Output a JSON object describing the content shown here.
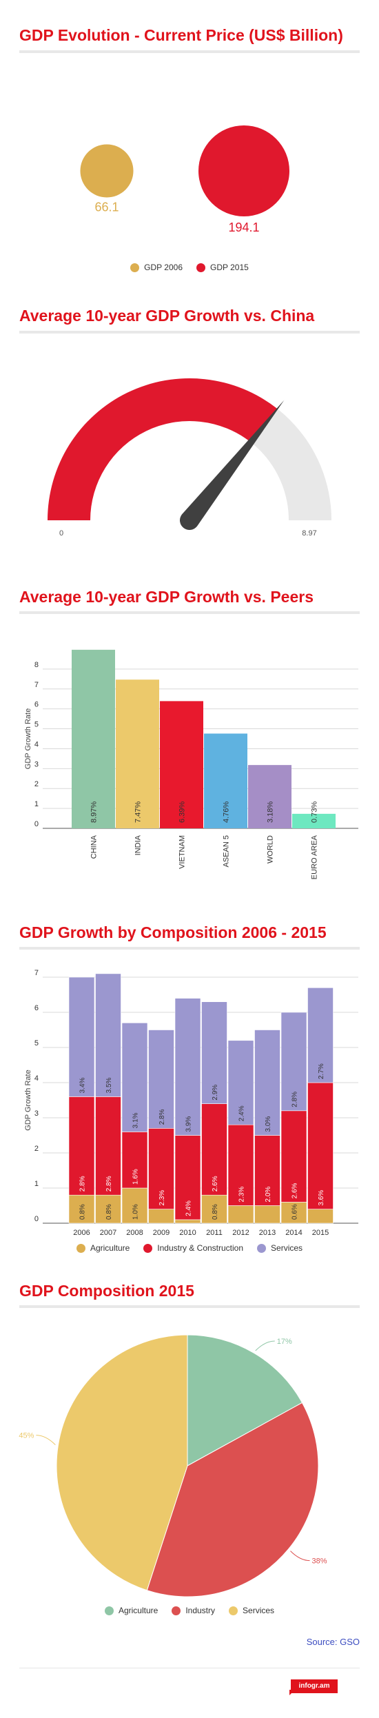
{
  "sections": {
    "gdp_evolution": "GDP Evolution - Current Price  (US$ Billion)",
    "vs_china": "Average 10-year GDP Growth vs. China",
    "vs_peers": "Average 10-year GDP Growth vs. Peers",
    "composition": "GDP Growth by Composition 2006 - 2015",
    "composition_2015": "GDP Composition 2015"
  },
  "source": "Source: GSO",
  "brand": "infogr.am",
  "colors": {
    "accent": "#e0131c",
    "grid": "#d9d9d9"
  },
  "chart_data": [
    {
      "type": "bubble",
      "series": [
        {
          "name": "GDP 2006",
          "value": 66.1,
          "color": "#dcae4f"
        },
        {
          "name": "GDP 2015",
          "value": 194.1,
          "color": "#e0182d"
        }
      ]
    },
    {
      "type": "gauge",
      "min": "0",
      "max": "8.97",
      "min_value": 0,
      "max_value": 8.97,
      "value": 6.39,
      "fill_color": "#e0182d",
      "track_color": "#e8e8e8",
      "needle_color": "#404040"
    },
    {
      "type": "bar",
      "ylabel": "GDP Growth Rate",
      "ylim": [
        0,
        9
      ],
      "yticks": [
        "0",
        "1",
        "2",
        "3",
        "4",
        "5",
        "6",
        "7",
        "8"
      ],
      "categories": [
        "CHINA",
        "INDIA",
        "VIETNAM",
        "ASEAN 5",
        "WORLD",
        "EURO AREA"
      ],
      "values": [
        8.97,
        7.47,
        6.39,
        4.76,
        3.18,
        0.73
      ],
      "labels": [
        "8.97%",
        "7.47%",
        "6.39%",
        "4.76%",
        "3.18%",
        "0.73%"
      ],
      "colors": [
        "#8fc6a6",
        "#ecc96b",
        "#e8192d",
        "#5fb2e0",
        "#a58ec6",
        "#6ee8c0"
      ]
    },
    {
      "type": "bar",
      "stacked": true,
      "ylabel": "GDP Growth Rate",
      "ylim": [
        0,
        7
      ],
      "yticks": [
        "0",
        "1",
        "2",
        "3",
        "4",
        "5",
        "6",
        "7"
      ],
      "categories": [
        "2006",
        "2007",
        "2008",
        "2009",
        "2010",
        "2011",
        "2012",
        "2013",
        "2014",
        "2015"
      ],
      "series": [
        {
          "name": "Agriculture",
          "color": "#dcae4f",
          "values": [
            0.8,
            0.8,
            1.0,
            0.4,
            0.1,
            0.8,
            0.5,
            0.5,
            0.6,
            0.4
          ],
          "labels": [
            "0.8%",
            "0.8%",
            "1.0%",
            "",
            "",
            "0.8%",
            "",
            "",
            "0.6%",
            ""
          ]
        },
        {
          "name": "Industry & Construction",
          "color": "#e0182d",
          "values": [
            2.8,
            2.8,
            1.6,
            2.3,
            2.4,
            2.6,
            2.3,
            2.0,
            2.6,
            3.6
          ],
          "labels": [
            "2.8%",
            "2.8%",
            "1.6%",
            "2.3%",
            "2.4%",
            "2.6%",
            "2.3%",
            "2.0%",
            "2.6%",
            "3.6%"
          ]
        },
        {
          "name": "Services",
          "color": "#9b97cf",
          "values": [
            3.4,
            3.5,
            3.1,
            2.8,
            3.9,
            2.9,
            2.4,
            3.0,
            2.8,
            2.7
          ],
          "labels": [
            "3.4%",
            "3.5%",
            "3.1%",
            "2.8%",
            "3.9%",
            "2.9%",
            "2.4%",
            "3.0%",
            "2.8%",
            "2.7%"
          ]
        }
      ]
    },
    {
      "type": "pie",
      "slices": [
        {
          "name": "Agriculture",
          "value": 17,
          "label": "17%",
          "color": "#8fc6a6"
        },
        {
          "name": "Industry",
          "value": 38,
          "label": "38%",
          "color": "#dc5050"
        },
        {
          "name": "Services",
          "value": 45,
          "label": "45%",
          "color": "#ecc96b"
        }
      ]
    }
  ]
}
